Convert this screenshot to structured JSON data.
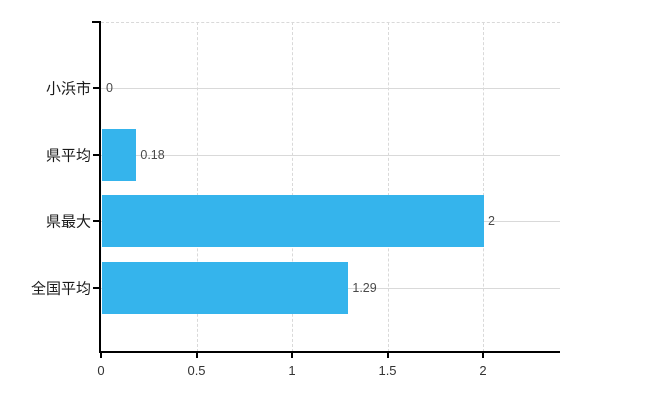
{
  "chart_data": {
    "type": "bar",
    "orientation": "horizontal",
    "title": "",
    "xlabel": "",
    "ylabel": "",
    "categories": [
      "小浜市",
      "県平均",
      "県最大",
      "全国平均"
    ],
    "values": [
      0,
      0.18,
      2,
      1.29
    ],
    "value_labels": [
      "0",
      "0.18",
      "2",
      "1.29"
    ],
    "x_axis": {
      "ticks": [
        0,
        0.5,
        1,
        1.5,
        2
      ],
      "tick_labels": [
        "0",
        "0.5",
        "1",
        "1.5",
        "2"
      ],
      "range": [
        0,
        2.4
      ]
    },
    "grid": "on",
    "legend": "none"
  },
  "colors": {
    "bar": "#35b4ec",
    "grid": "#d9d9d9",
    "axis": "#000000",
    "tick_text": "#333333",
    "category_text": "#1a1a1a",
    "value_text": "#4a4a4a",
    "background": "#ffffff"
  }
}
